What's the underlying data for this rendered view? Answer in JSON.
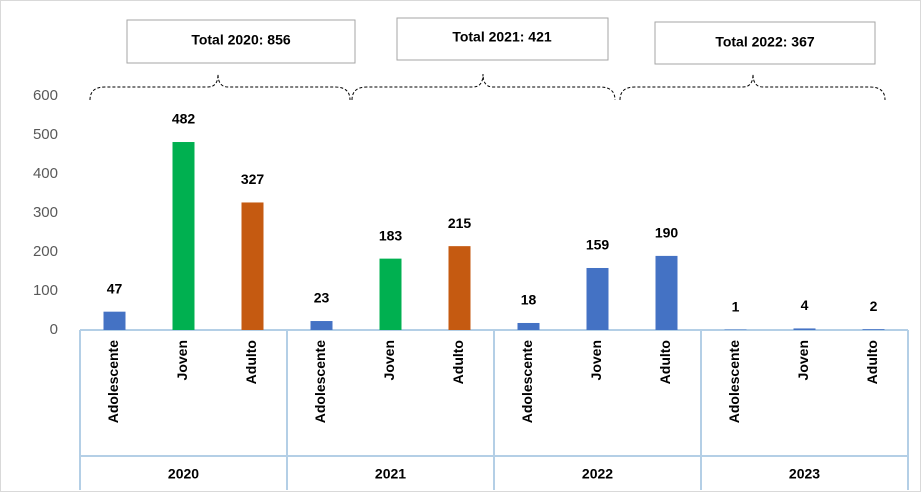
{
  "chart_data": {
    "type": "bar",
    "categories": [
      "Adolescente",
      "Joven",
      "Adulto",
      "Adolescente",
      "Joven",
      "Adulto",
      "Adolescente",
      "Joven",
      "Adulto",
      "Adolescente",
      "Joven",
      "Adulto"
    ],
    "groups": [
      "2020",
      "2021",
      "2022",
      "2023"
    ],
    "values": [
      47,
      482,
      327,
      23,
      183,
      215,
      18,
      159,
      190,
      1,
      4,
      2
    ],
    "colors": [
      "#4472c4",
      "#00b050",
      "#c55a11",
      "#4472c4",
      "#00b050",
      "#c55a11",
      "#4472c4",
      "#4472c4",
      "#4472c4",
      "#4472c4",
      "#4472c4",
      "#4472c4"
    ],
    "ylim": [
      0,
      600
    ],
    "yticks": [
      0,
      100,
      200,
      300,
      400,
      500,
      600
    ],
    "grid": false,
    "annotations": [
      "Total 2020:  856",
      "Total 2021:  421",
      "Total 2022:  367"
    ]
  }
}
